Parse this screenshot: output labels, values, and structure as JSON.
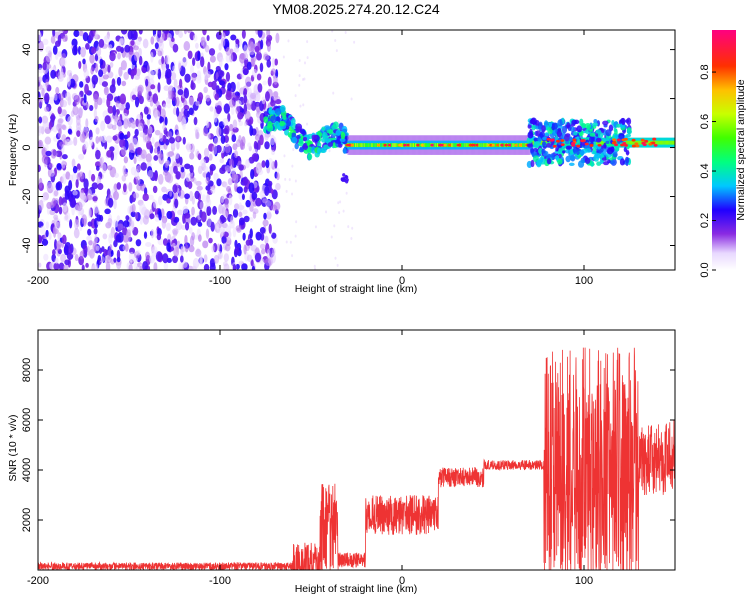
{
  "title": "YM08.2025.274.20.12.C24",
  "chart_data": [
    {
      "type": "heatmap",
      "xlabel": "Height of straight line (km)",
      "ylabel": "Frequency (Hz)",
      "xlim": [
        -200,
        150
      ],
      "ylim": [
        -50,
        48
      ],
      "xticks": [
        -200,
        -100,
        0,
        100
      ],
      "yticks": [
        -40,
        -20,
        0,
        20,
        40
      ],
      "colorbar": {
        "label": "Normalized spectral amplitude",
        "range": [
          0,
          0.97
        ],
        "ticks": [
          0.0,
          0.2,
          0.4,
          0.6,
          0.8
        ]
      },
      "regions": [
        {
          "name": "noise",
          "x_range": [
            -200,
            -68
          ],
          "freq_range": [
            -50,
            48
          ],
          "amplitude_range": [
            0.05,
            0.2
          ]
        },
        {
          "name": "onset",
          "x_range": [
            -75,
            -30
          ],
          "freq_center_start": 10,
          "freq_center_end": 0,
          "amplitude_range": [
            0.2,
            0.5
          ]
        },
        {
          "name": "stable-band",
          "x_range": [
            -30,
            70
          ],
          "freq_center": 1,
          "amplitude_range": [
            0.3,
            0.97
          ]
        },
        {
          "name": "late-band",
          "x_range": [
            70,
            150
          ],
          "freq_center": 2,
          "amplitude_range": [
            0.2,
            0.97
          ]
        }
      ]
    },
    {
      "type": "line",
      "xlabel": "Height of straight line (km)",
      "ylabel": "SNR (10 * v/v)",
      "xlim": [
        -200,
        150
      ],
      "ylim": [
        0,
        9600
      ],
      "xticks": [
        -200,
        -100,
        0,
        100
      ],
      "yticks": [
        2000,
        4000,
        6000,
        8000
      ],
      "series": [
        {
          "name": "SNR",
          "color": "#ee3333",
          "segments": [
            {
              "x": [
                -200,
                -60
              ],
              "base": 150,
              "noise": 150
            },
            {
              "x": [
                -60,
                -45
              ],
              "base": 300,
              "noise": 800
            },
            {
              "x": [
                -45,
                -35
              ],
              "base": 1600,
              "noise": 1900
            },
            {
              "x": [
                -35,
                -20
              ],
              "base": 400,
              "noise": 300
            },
            {
              "x": [
                -20,
                20
              ],
              "base": 2200,
              "noise": 800
            },
            {
              "x": [
                20,
                45
              ],
              "base": 3700,
              "noise": 400
            },
            {
              "x": [
                45,
                78
              ],
              "base": 4200,
              "noise": 200
            },
            {
              "x": [
                78,
                130
              ],
              "base": 4200,
              "noise": 4700
            },
            {
              "x": [
                130,
                150
              ],
              "base": 4500,
              "noise": 1500
            }
          ]
        }
      ]
    }
  ]
}
